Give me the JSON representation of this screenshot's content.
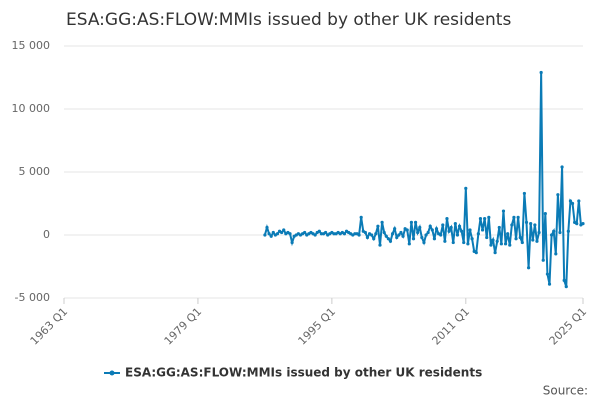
{
  "chart_data": {
    "type": "line",
    "title": "ESA:GG:AS:FLOW:MMIs issued by other UK residents",
    "source": "Source:",
    "xlim": [
      "1963 Q1",
      "2025 Q1"
    ],
    "xticks": [
      "1963 Q1",
      "1979 Q1",
      "1995 Q1",
      "2011 Q1",
      "2025 Q1"
    ],
    "ylim": [
      -5000,
      15000
    ],
    "yticks": [
      {
        "value": -5000,
        "label": "-5 000"
      },
      0,
      {
        "value": 5000,
        "label": "5 000"
      },
      {
        "value": 10000,
        "label": "10 000"
      },
      {
        "value": 15000,
        "label": "15 000"
      }
    ],
    "grid": true,
    "x": [
      "1987 Q1",
      "1987 Q2",
      "1987 Q3",
      "1987 Q4",
      "1988 Q1",
      "1988 Q2",
      "1988 Q3",
      "1988 Q4",
      "1989 Q1",
      "1989 Q2",
      "1989 Q3",
      "1989 Q4",
      "1990 Q1",
      "1990 Q2",
      "1990 Q3",
      "1990 Q4",
      "1991 Q1",
      "1991 Q2",
      "1991 Q3",
      "1991 Q4",
      "1992 Q1",
      "1992 Q2",
      "1992 Q3",
      "1992 Q4",
      "1993 Q1",
      "1993 Q2",
      "1993 Q3",
      "1993 Q4",
      "1994 Q1",
      "1994 Q2",
      "1994 Q3",
      "1994 Q4",
      "1995 Q1",
      "1995 Q2",
      "1995 Q3",
      "1995 Q4",
      "1996 Q1",
      "1996 Q2",
      "1996 Q3",
      "1996 Q4",
      "1997 Q1",
      "1997 Q2",
      "1997 Q3",
      "1997 Q4",
      "1998 Q1",
      "1998 Q2",
      "1998 Q3",
      "1998 Q4",
      "1999 Q1",
      "1999 Q2",
      "1999 Q3",
      "1999 Q4",
      "2000 Q1",
      "2000 Q2",
      "2000 Q3",
      "2000 Q4",
      "2001 Q1",
      "2001 Q2",
      "2001 Q3",
      "2001 Q4",
      "2002 Q1",
      "2002 Q2",
      "2002 Q3",
      "2002 Q4",
      "2003 Q1",
      "2003 Q2",
      "2003 Q3",
      "2003 Q4",
      "2004 Q1",
      "2004 Q2",
      "2004 Q3",
      "2004 Q4",
      "2005 Q1",
      "2005 Q2",
      "2005 Q3",
      "2005 Q4",
      "2006 Q1",
      "2006 Q2",
      "2006 Q3",
      "2006 Q4",
      "2007 Q1",
      "2007 Q2",
      "2007 Q3",
      "2007 Q4",
      "2008 Q1",
      "2008 Q2",
      "2008 Q3",
      "2008 Q4",
      "2009 Q1",
      "2009 Q2",
      "2009 Q3",
      "2009 Q4",
      "2010 Q1",
      "2010 Q2",
      "2010 Q3",
      "2010 Q4",
      "2011 Q1",
      "2011 Q2",
      "2011 Q3",
      "2011 Q4",
      "2012 Q1",
      "2012 Q2",
      "2012 Q3",
      "2012 Q4",
      "2013 Q1",
      "2013 Q2",
      "2013 Q3",
      "2013 Q4",
      "2014 Q1",
      "2014 Q2",
      "2014 Q3",
      "2014 Q4",
      "2015 Q1",
      "2015 Q2",
      "2015 Q3",
      "2015 Q4",
      "2016 Q1",
      "2016 Q2",
      "2016 Q3",
      "2016 Q4",
      "2017 Q1",
      "2017 Q2",
      "2017 Q3",
      "2017 Q4",
      "2018 Q1",
      "2018 Q2",
      "2018 Q3",
      "2018 Q4",
      "2019 Q1",
      "2019 Q2",
      "2019 Q3",
      "2019 Q4",
      "2020 Q1",
      "2020 Q2",
      "2020 Q3",
      "2020 Q4",
      "2021 Q1",
      "2021 Q2",
      "2021 Q3",
      "2021 Q4",
      "2022 Q1",
      "2022 Q2",
      "2022 Q3",
      "2022 Q4",
      "2023 Q1",
      "2023 Q2",
      "2023 Q3",
      "2023 Q4",
      "2024 Q1",
      "2024 Q2",
      "2024 Q3",
      "2024 Q4",
      "2025 Q1"
    ],
    "series": [
      {
        "name": "ESA:GG:AS:FLOW:MMIs issued by other UK residents",
        "color": "#0b7bb6",
        "values": [
          0,
          600,
          100,
          -100,
          200,
          0,
          100,
          300,
          200,
          400,
          100,
          200,
          100,
          -600,
          -100,
          0,
          100,
          0,
          100,
          200,
          0,
          100,
          200,
          100,
          0,
          200,
          300,
          100,
          100,
          200,
          0,
          100,
          200,
          100,
          100,
          200,
          100,
          200,
          100,
          300,
          200,
          100,
          0,
          100,
          100,
          0,
          1400,
          300,
          200,
          -200,
          100,
          0,
          -300,
          100,
          700,
          -800,
          1000,
          200,
          -100,
          -300,
          -500,
          100,
          500,
          -200,
          0,
          200,
          -100,
          500,
          400,
          -700,
          1000,
          -300,
          1000,
          200,
          600,
          -200,
          -600,
          0,
          200,
          700,
          400,
          -300,
          500,
          100,
          0,
          800,
          -500,
          1300,
          300,
          600,
          -600,
          900,
          0,
          700,
          300,
          -600,
          3700,
          -700,
          400,
          -300,
          -1300,
          -1400,
          100,
          1300,
          400,
          1300,
          -200,
          1400,
          -800,
          -400,
          -1400,
          -500,
          600,
          -700,
          1900,
          -700,
          100,
          -800,
          800,
          1400,
          -300,
          1400,
          -200,
          -600,
          3300,
          1000,
          -2600,
          900,
          -400,
          800,
          -500,
          200,
          12900,
          -2000,
          1700,
          -3100,
          -3900,
          0,
          300,
          -1500,
          3200,
          200,
          5400,
          -3600,
          -4100,
          300,
          2700,
          2500,
          1000,
          900,
          2700,
          800,
          900
        ]
      }
    ]
  }
}
